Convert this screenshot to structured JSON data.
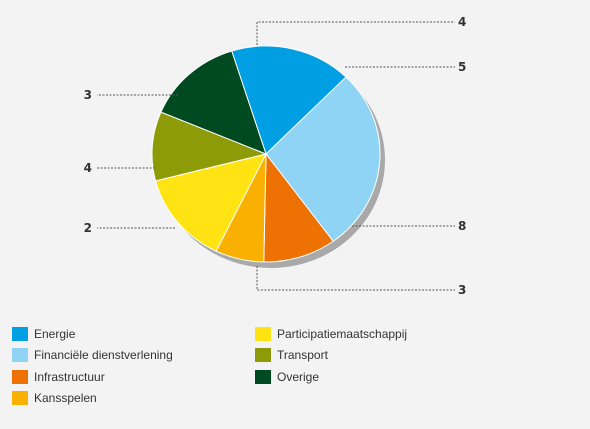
{
  "chart_data": {
    "type": "pie",
    "title": "",
    "slices": [
      {
        "name": "Energie",
        "value": 5,
        "color": "#009fe3",
        "label": "5"
      },
      {
        "name": "Financiële dienstverlening",
        "value": 8,
        "color": "#8fd3f5",
        "label": "8"
      },
      {
        "name": "Infrastructuur",
        "value": 3,
        "color": "#ee7203",
        "label": "3"
      },
      {
        "name": "Kansspelen",
        "value": 2,
        "color": "#f9b000",
        "label": "2"
      },
      {
        "name": "Participatiemaatschappij",
        "value": 4,
        "color": "#ffe312",
        "label": "4"
      },
      {
        "name": "Transport",
        "value": 3,
        "color": "#8e9b09",
        "label": "3"
      },
      {
        "name": "Overige",
        "value": 4,
        "color": "#004a21",
        "label": "4"
      }
    ]
  },
  "legend": {
    "items": [
      {
        "label": "Energie",
        "color": "#009fe3"
      },
      {
        "label": "Financiële dienstverlening",
        "color": "#8fd3f5"
      },
      {
        "label": "Infrastructuur",
        "color": "#ee7203"
      },
      {
        "label": "Kansspelen",
        "color": "#f9b000"
      },
      {
        "label": "Participatiemaatschappij",
        "color": "#ffe312"
      },
      {
        "label": "Transport",
        "color": "#8e9b09"
      },
      {
        "label": "Overige",
        "color": "#004a21"
      }
    ]
  }
}
